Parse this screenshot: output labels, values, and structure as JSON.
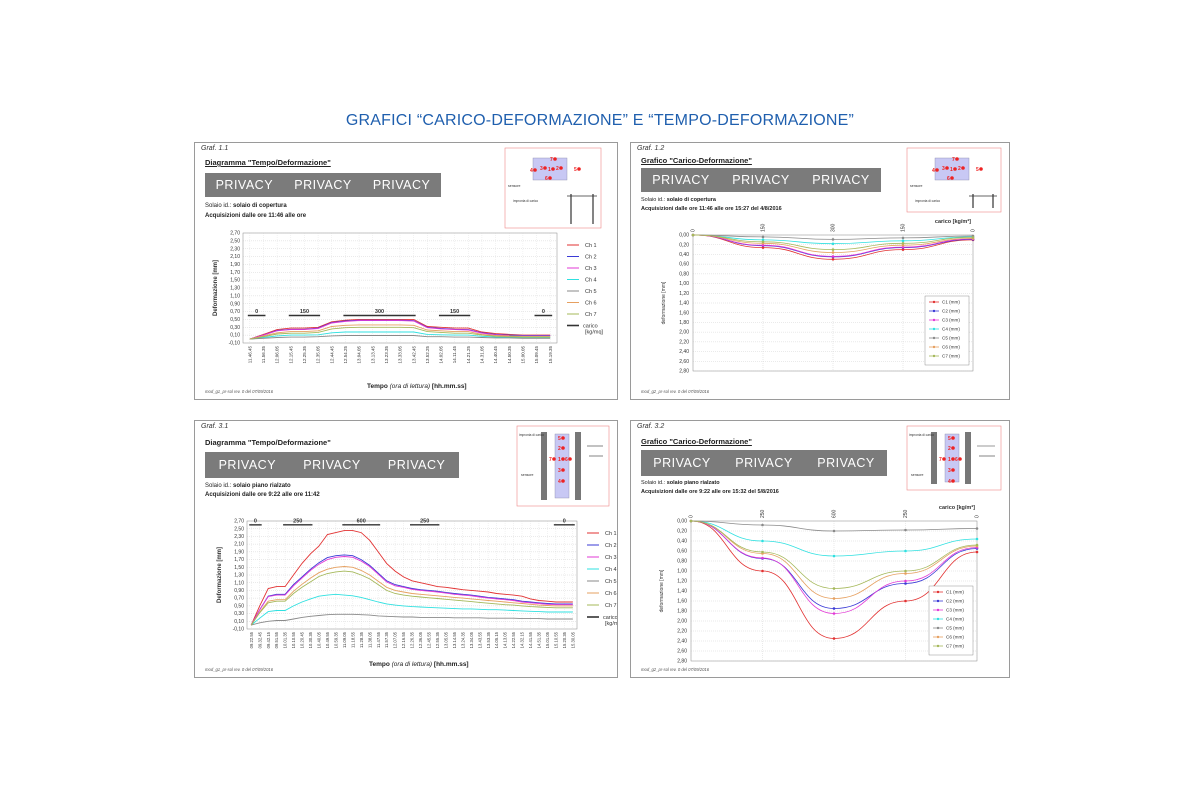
{
  "page": {
    "title": "GRAFICI “CARICO-DEFORMAZIONE” E “TEMPO-DEFORMAZIONE”"
  },
  "colors": {
    "title_blue": "#1f5fae",
    "privacy_bar": "#7b7b7b",
    "ch": [
      "#e23232",
      "#3a3ad6",
      "#e23ad6",
      "#2fe0e0",
      "#8a8a8a",
      "#e6a060",
      "#a5b85a"
    ]
  },
  "panels": [
    {
      "graf": "Graf. 1.1",
      "diagram_title": "Diagramma \"Tempo/Deformazione\"",
      "privacy": [
        "PRIVACY",
        "PRIVACY",
        "PRIVACY"
      ],
      "solaio_label": "Solaio id.:",
      "solaio_value": "solaio di copertura",
      "acquisizioni": "Acquisizioni dalle ore 11:46 alle ore",
      "footer": "mod_g1_pr-sol rev. 0 del 07/09/2016",
      "x_title": "Tempo",
      "x_title_italic": "(ora di lettura)",
      "x_title_unit": "[hh.mm.ss]",
      "sketch_labels": [
        "sensore",
        "impronta di carico"
      ]
    },
    {
      "graf": "Graf. 1.2",
      "diagram_title": "Grafico \"Carico-Deformazione\"",
      "privacy": [
        "PRIVACY",
        "PRIVACY",
        "PRIVACY"
      ],
      "solaio_label": "Solaio id.:",
      "solaio_value": "solaio di copertura",
      "acquisizioni": "Acquisizioni dalle ore 11:46 alle ore 15:27 del 4/8/2016",
      "footer": "mod_g2_pr-sol rev. 0 del 07/09/2016",
      "sketch_labels": [
        "sensore",
        "impronta di carico"
      ]
    },
    {
      "graf": "Graf. 3.1",
      "diagram_title": "Diagramma \"Tempo/Deformazione\"",
      "privacy": [
        "PRIVACY",
        "PRIVACY",
        "PRIVACY"
      ],
      "solaio_label": "Solaio id.:",
      "solaio_value": "solaio piano rialzato",
      "acquisizioni": "Acquisizioni dalle ore 9:22 alle ore 11:42",
      "footer": "mod_g1_pr-sol rev. 0 del 07/09/2016",
      "x_title": "Tempo",
      "x_title_italic": "(ora di lettura)",
      "x_title_unit": "[hh.mm.ss]",
      "sketch_labels": [
        "impronta di carico",
        "sensore"
      ]
    },
    {
      "graf": "Graf. 3.2",
      "diagram_title": "Grafico \"Carico-Deformazione\"",
      "privacy": [
        "PRIVACY",
        "PRIVACY",
        "PRIVACY"
      ],
      "solaio_label": "Solaio id.:",
      "solaio_value": "solaio piano rialzato",
      "acquisizioni": "Acquisizioni dalle ore 9:22 alle ore 15:32 del 5/8/2016",
      "footer": "mod_g2_pr-sol rev. 0 del 07/09/2016",
      "sketch_labels": [
        "impronta di carico",
        "sensore"
      ]
    }
  ],
  "chart_data": [
    {
      "type": "line",
      "ylabel": "Deformazione [mm]",
      "ylim": [
        -0.1,
        2.7
      ],
      "yticks": [
        "2,70",
        "2,50",
        "2,30",
        "2,10",
        "1,90",
        "1,70",
        "1,50",
        "1,30",
        "1,10",
        "0,90",
        "0,70",
        "0,50",
        "0,30",
        "0,10",
        "-0,10"
      ],
      "x": [
        "11.46.45",
        "11.56.35",
        "12.06.05",
        "12.15.45",
        "12.25.35",
        "12.35.05",
        "12.44.45",
        "12.54.25",
        "13.04.05",
        "13.13.45",
        "13.23.35",
        "13.33.05",
        "13.42.45",
        "13.52.25",
        "14.02.05",
        "14.11.45",
        "14.21.25",
        "14.31.05",
        "14.40.45",
        "14.50.35",
        "15.00.05",
        "15.09.45",
        "15.19.35"
      ],
      "grid": true,
      "legend_position": "right",
      "series": [
        {
          "name": "Ch 1",
          "values": [
            0,
            0.12,
            0.24,
            0.28,
            0.28,
            0.3,
            0.44,
            0.48,
            0.5,
            0.5,
            0.5,
            0.5,
            0.5,
            0.32,
            0.3,
            0.28,
            0.28,
            0.18,
            0.14,
            0.12,
            0.1,
            0.1,
            0.1
          ]
        },
        {
          "name": "Ch 2",
          "values": [
            0,
            0.1,
            0.22,
            0.25,
            0.25,
            0.28,
            0.42,
            0.46,
            0.48,
            0.48,
            0.48,
            0.48,
            0.47,
            0.3,
            0.27,
            0.25,
            0.24,
            0.16,
            0.12,
            0.1,
            0.09,
            0.09,
            0.09
          ]
        },
        {
          "name": "Ch 3",
          "values": [
            0,
            0.1,
            0.21,
            0.24,
            0.24,
            0.27,
            0.41,
            0.45,
            0.47,
            0.47,
            0.47,
            0.47,
            0.46,
            0.29,
            0.26,
            0.24,
            0.23,
            0.15,
            0.11,
            0.09,
            0.08,
            0.08,
            0.08
          ]
        },
        {
          "name": "Ch 4",
          "values": [
            0,
            0.04,
            0.08,
            0.1,
            0.1,
            0.11,
            0.16,
            0.18,
            0.18,
            0.18,
            0.18,
            0.18,
            0.18,
            0.12,
            0.11,
            0.1,
            0.1,
            0.07,
            0.05,
            0.04,
            0.04,
            0.04,
            0.04
          ]
        },
        {
          "name": "Ch 5",
          "values": [
            0,
            0.02,
            0.04,
            0.05,
            0.05,
            0.06,
            0.08,
            0.09,
            0.09,
            0.09,
            0.09,
            0.09,
            0.09,
            0.06,
            0.06,
            0.05,
            0.05,
            0.04,
            0.03,
            0.03,
            0.02,
            0.02,
            0.02
          ]
        },
        {
          "name": "Ch 6",
          "values": [
            0,
            0.08,
            0.16,
            0.19,
            0.19,
            0.21,
            0.32,
            0.35,
            0.36,
            0.36,
            0.36,
            0.36,
            0.35,
            0.23,
            0.21,
            0.19,
            0.19,
            0.12,
            0.09,
            0.08,
            0.07,
            0.07,
            0.07
          ]
        },
        {
          "name": "Ch 7",
          "values": [
            0,
            0.06,
            0.13,
            0.15,
            0.15,
            0.17,
            0.26,
            0.29,
            0.3,
            0.3,
            0.3,
            0.3,
            0.29,
            0.19,
            0.17,
            0.15,
            0.15,
            0.1,
            0.07,
            0.06,
            0.05,
            0.05,
            0.05
          ]
        }
      ],
      "load_steps": [
        {
          "label": "0",
          "from": 0,
          "to": 1
        },
        {
          "label": "150",
          "from": 3,
          "to": 5
        },
        {
          "label": "300",
          "from": 7,
          "to": 12
        },
        {
          "label": "150",
          "from": 14,
          "to": 16
        },
        {
          "label": "0",
          "from": 21,
          "to": 22
        }
      ],
      "carico_legend": "carico [kg/mq]"
    },
    {
      "type": "line",
      "ylabel": "deformazione [mm]",
      "xlabel": "carico [kg/m²]",
      "yinverted": true,
      "ylim": [
        0.0,
        2.8
      ],
      "yticks": [
        "0,00",
        "0,20",
        "0,40",
        "0,60",
        "0,80",
        "1,00",
        "1,20",
        "1,40",
        "1,60",
        "1,80",
        "2,00",
        "2,20",
        "2,40",
        "2,60",
        "2,80"
      ],
      "x": [
        "0",
        "150",
        "300",
        "150",
        "0"
      ],
      "grid": true,
      "legend_position": "bottom-right",
      "series": [
        {
          "name": "C1 (mm)",
          "values": [
            0,
            0.26,
            0.5,
            0.3,
            0.1
          ]
        },
        {
          "name": "C2 (mm)",
          "values": [
            0,
            0.22,
            0.45,
            0.26,
            0.09
          ]
        },
        {
          "name": "C3 (mm)",
          "values": [
            0,
            0.21,
            0.44,
            0.25,
            0.08
          ]
        },
        {
          "name": "C4 (mm)",
          "values": [
            0,
            0.1,
            0.18,
            0.12,
            0.04
          ]
        },
        {
          "name": "C5 (mm)",
          "values": [
            0,
            0.04,
            0.09,
            0.06,
            0.02
          ]
        },
        {
          "name": "C6 (mm)",
          "values": [
            0,
            0.17,
            0.36,
            0.21,
            0.07
          ]
        },
        {
          "name": "C7 (mm)",
          "values": [
            0,
            0.14,
            0.3,
            0.17,
            0.05
          ]
        }
      ]
    },
    {
      "type": "line",
      "ylabel": "Deformazione [mm]",
      "ylim": [
        -0.1,
        2.7
      ],
      "yticks": [
        "2,70",
        "2,50",
        "2,30",
        "2,10",
        "1,90",
        "1,70",
        "1,50",
        "1,30",
        "1,10",
        "0,90",
        "0,70",
        "0,50",
        "0,30",
        "0,10",
        "-0,10"
      ],
      "x": [
        "09.22.55",
        "09.32.45",
        "09.42.15",
        "09.51.55",
        "10.01.35",
        "10.10.55",
        "10.20.45",
        "10.30.35",
        "10.40.05",
        "10.49.55",
        "10.59.35",
        "11.09.05",
        "11.18.55",
        "11.28.35",
        "11.38.05",
        "11.47.55",
        "11.57.35",
        "12.07.05",
        "12.16.55",
        "12.26.35",
        "12.36.05",
        "12.45.55",
        "12.55.35",
        "13.05.05",
        "13.14.55",
        "13.24.35",
        "13.34.05",
        "13.43.55",
        "13.53.35",
        "14.05.15",
        "14.13.05",
        "14.22.55",
        "14.32.15",
        "14.41.55",
        "14.51.35",
        "15.01.05",
        "15.10.55",
        "15.20.35",
        "15.30.05"
      ],
      "grid": true,
      "legend_position": "right",
      "series": [
        {
          "name": "Ch 1",
          "values": [
            0,
            0.5,
            0.95,
            1.0,
            1.0,
            1.3,
            1.6,
            1.85,
            2.05,
            2.35,
            2.4,
            2.45,
            2.45,
            2.4,
            2.2,
            1.9,
            1.6,
            1.4,
            1.25,
            1.15,
            1.1,
            1.05,
            1.0,
            0.98,
            0.95,
            0.92,
            0.9,
            0.88,
            0.86,
            0.82,
            0.8,
            0.78,
            0.75,
            0.68,
            0.64,
            0.62,
            0.6,
            0.6,
            0.6
          ]
        },
        {
          "name": "Ch 2",
          "values": [
            0,
            0.4,
            0.75,
            0.8,
            0.8,
            1.05,
            1.25,
            1.45,
            1.62,
            1.75,
            1.8,
            1.82,
            1.8,
            1.7,
            1.55,
            1.35,
            1.15,
            1.05,
            1.0,
            0.95,
            0.92,
            0.9,
            0.88,
            0.85,
            0.82,
            0.8,
            0.78,
            0.75,
            0.72,
            0.7,
            0.68,
            0.66,
            0.62,
            0.6,
            0.58,
            0.56,
            0.55,
            0.55,
            0.55
          ]
        },
        {
          "name": "Ch 3",
          "values": [
            0,
            0.4,
            0.74,
            0.78,
            0.78,
            1.02,
            1.22,
            1.42,
            1.58,
            1.7,
            1.76,
            1.78,
            1.76,
            1.66,
            1.52,
            1.32,
            1.12,
            1.02,
            0.98,
            0.93,
            0.9,
            0.88,
            0.86,
            0.83,
            0.8,
            0.78,
            0.76,
            0.73,
            0.7,
            0.68,
            0.66,
            0.64,
            0.6,
            0.58,
            0.56,
            0.54,
            0.53,
            0.53,
            0.53
          ]
        },
        {
          "name": "Ch 4",
          "values": [
            0,
            0.18,
            0.35,
            0.38,
            0.38,
            0.5,
            0.6,
            0.68,
            0.75,
            0.78,
            0.8,
            0.78,
            0.76,
            0.72,
            0.66,
            0.6,
            0.55,
            0.52,
            0.5,
            0.48,
            0.47,
            0.46,
            0.45,
            0.44,
            0.43,
            0.42,
            0.42,
            0.41,
            0.4,
            0.4,
            0.39,
            0.38,
            0.37,
            0.36,
            0.35,
            0.34,
            0.34,
            0.34,
            0.34
          ]
        },
        {
          "name": "Ch 5",
          "values": [
            0,
            0.06,
            0.1,
            0.12,
            0.12,
            0.16,
            0.2,
            0.23,
            0.25,
            0.27,
            0.28,
            0.28,
            0.28,
            0.27,
            0.26,
            0.24,
            0.23,
            0.22,
            0.21,
            0.21,
            0.2,
            0.2,
            0.2,
            0.2,
            0.19,
            0.19,
            0.19,
            0.19,
            0.18,
            0.18,
            0.18,
            0.18,
            0.17,
            0.17,
            0.17,
            0.16,
            0.16,
            0.16,
            0.16
          ]
        },
        {
          "name": "Ch 6",
          "values": [
            0,
            0.34,
            0.62,
            0.66,
            0.66,
            0.88,
            1.06,
            1.22,
            1.36,
            1.45,
            1.5,
            1.52,
            1.5,
            1.42,
            1.3,
            1.14,
            0.98,
            0.9,
            0.86,
            0.82,
            0.8,
            0.78,
            0.76,
            0.74,
            0.72,
            0.7,
            0.68,
            0.66,
            0.64,
            0.62,
            0.6,
            0.58,
            0.56,
            0.54,
            0.52,
            0.51,
            0.5,
            0.5,
            0.5
          ]
        },
        {
          "name": "Ch 7",
          "values": [
            0,
            0.32,
            0.58,
            0.62,
            0.62,
            0.82,
            0.98,
            1.12,
            1.26,
            1.34,
            1.38,
            1.4,
            1.38,
            1.3,
            1.2,
            1.05,
            0.9,
            0.82,
            0.78,
            0.75,
            0.73,
            0.71,
            0.69,
            0.67,
            0.65,
            0.63,
            0.61,
            0.59,
            0.57,
            0.55,
            0.53,
            0.52,
            0.5,
            0.48,
            0.47,
            0.46,
            0.45,
            0.45,
            0.45
          ]
        }
      ],
      "load_steps": [
        {
          "label": "0",
          "from": 0,
          "to": 1
        },
        {
          "label": "250",
          "from": 4,
          "to": 7
        },
        {
          "label": "600",
          "from": 11,
          "to": 15
        },
        {
          "label": "250",
          "from": 19,
          "to": 22
        },
        {
          "label": "0",
          "from": 36,
          "to": 38
        }
      ],
      "carico_legend": "carico [kg/mq]"
    },
    {
      "type": "line",
      "ylabel": "deformazione [mm]",
      "xlabel": "carico [kg/m²]",
      "yinverted": true,
      "ylim": [
        0.0,
        2.8
      ],
      "yticks": [
        "0,00",
        "0,20",
        "0,40",
        "0,60",
        "0,80",
        "1,00",
        "1,20",
        "1,40",
        "1,60",
        "1,80",
        "2,00",
        "2,20",
        "2,40",
        "2,60",
        "2,80"
      ],
      "x": [
        "0",
        "250",
        "600",
        "250",
        "0"
      ],
      "grid": true,
      "legend_position": "bottom-right",
      "series": [
        {
          "name": "C1 (mm)",
          "values": [
            0,
            1.0,
            2.35,
            1.6,
            0.62
          ]
        },
        {
          "name": "C2 (mm)",
          "values": [
            0,
            0.75,
            1.75,
            1.25,
            0.55
          ]
        },
        {
          "name": "C3 (mm)",
          "values": [
            0,
            0.74,
            1.85,
            1.2,
            0.53
          ]
        },
        {
          "name": "C4 (mm)",
          "values": [
            0,
            0.4,
            0.7,
            0.6,
            0.36
          ]
        },
        {
          "name": "C5 (mm)",
          "values": [
            0,
            0.08,
            0.2,
            0.18,
            0.15
          ]
        },
        {
          "name": "C6 (mm)",
          "values": [
            0,
            0.65,
            1.55,
            1.05,
            0.5
          ]
        },
        {
          "name": "C7 (mm)",
          "values": [
            0,
            0.62,
            1.35,
            1.0,
            0.48
          ]
        }
      ]
    }
  ]
}
